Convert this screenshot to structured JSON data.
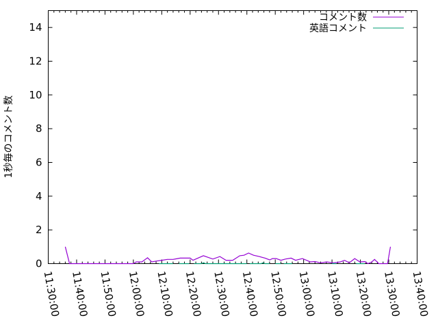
{
  "chart_data": {
    "type": "line",
    "title": "",
    "xlabel": "",
    "ylabel": "1秒毎のコメント数",
    "xlim": [
      "11:30:00",
      "13:40:00"
    ],
    "ylim": [
      0,
      15
    ],
    "x_tick_labels": [
      "11:30:00",
      "11:40:00",
      "11:50:00",
      "12:00:00",
      "12:10:00",
      "12:20:00",
      "12:30:00",
      "12:40:00",
      "12:50:00",
      "13:00:00",
      "13:10:00",
      "13:20:00",
      "13:30:00",
      "13:40:00"
    ],
    "y_tick_labels": [
      "0",
      "2",
      "4",
      "6",
      "8",
      "10",
      "12",
      "14"
    ],
    "grid": false,
    "legend_position": "top-right",
    "series": [
      {
        "name": "コメント数",
        "color": "#9400d3",
        "points": [
          [
            "11:36:00",
            1.0
          ],
          [
            "11:37:30",
            0
          ],
          [
            "12:00:00",
            0
          ],
          [
            "12:01:00",
            0.1
          ],
          [
            "12:03:00",
            0.1
          ],
          [
            "12:05:00",
            0.35
          ],
          [
            "12:06:30",
            0.1
          ],
          [
            "12:08:00",
            0.15
          ],
          [
            "12:10:00",
            0.2
          ],
          [
            "12:12:00",
            0.25
          ],
          [
            "12:14:00",
            0.25
          ],
          [
            "12:16:30",
            0.33
          ],
          [
            "12:20:00",
            0.33
          ],
          [
            "12:21:00",
            0.2
          ],
          [
            "12:24:40",
            0.47
          ],
          [
            "12:28:00",
            0.27
          ],
          [
            "12:30:30",
            0.42
          ],
          [
            "12:32:40",
            0.2
          ],
          [
            "12:35:00",
            0.2
          ],
          [
            "12:37:30",
            0.47
          ],
          [
            "12:39:00",
            0.5
          ],
          [
            "12:40:36",
            0.63
          ],
          [
            "12:42:20",
            0.5
          ],
          [
            "12:44:20",
            0.42
          ],
          [
            "12:46:25",
            0.33
          ],
          [
            "12:48:05",
            0.22
          ],
          [
            "12:49:00",
            0.3
          ],
          [
            "12:50:20",
            0.3
          ],
          [
            "12:52:00",
            0.2
          ],
          [
            "12:53:35",
            0.27
          ],
          [
            "12:55:35",
            0.33
          ],
          [
            "12:57:10",
            0.2
          ],
          [
            "12:59:35",
            0.3
          ],
          [
            "13:02:25",
            0.1
          ],
          [
            "13:04:00",
            0.12
          ],
          [
            "13:06:00",
            0.05
          ],
          [
            "13:08:05",
            0.1
          ],
          [
            "13:10:30",
            0.05
          ],
          [
            "13:12:55",
            0.1
          ],
          [
            "13:14:25",
            0.2
          ],
          [
            "13:16:05",
            0.05
          ],
          [
            "13:18:00",
            0.3
          ],
          [
            "13:19:50",
            0.1
          ],
          [
            "13:21:35",
            0.12
          ],
          [
            "13:22:40",
            0
          ],
          [
            "13:24:00",
            0.1
          ],
          [
            "13:25:00",
            0.25
          ],
          [
            "13:26:30",
            0
          ],
          [
            "13:29:35",
            0
          ],
          [
            "13:30:35",
            1.0
          ]
        ]
      },
      {
        "name": "英語コメント",
        "color": "#009e73",
        "points": [
          [
            "12:09:00",
            0
          ],
          [
            "12:14:00",
            0
          ],
          null,
          [
            "12:16:00",
            0
          ],
          [
            "12:19:40",
            0
          ],
          null,
          [
            "12:21:25",
            0
          ],
          [
            "12:24:00",
            0
          ],
          [
            "12:24:40",
            0.05
          ],
          [
            "12:25:30",
            0
          ],
          [
            "12:36:40",
            0
          ],
          [
            "12:40:00",
            0
          ],
          null,
          [
            "12:41:00",
            0
          ],
          [
            "12:45:00",
            0
          ],
          [
            "12:45:40",
            0.05
          ],
          [
            "12:46:20",
            0
          ],
          [
            "12:48:00",
            0
          ],
          null,
          [
            "12:50:00",
            0
          ],
          [
            "12:52:00",
            0
          ],
          null,
          [
            "12:53:00",
            0
          ],
          [
            "12:56:00",
            0
          ],
          null,
          [
            "13:10:00",
            0
          ],
          [
            "13:11:30",
            0
          ],
          null,
          [
            "13:18:30",
            0
          ],
          [
            "13:21:30",
            0
          ]
        ]
      }
    ]
  }
}
